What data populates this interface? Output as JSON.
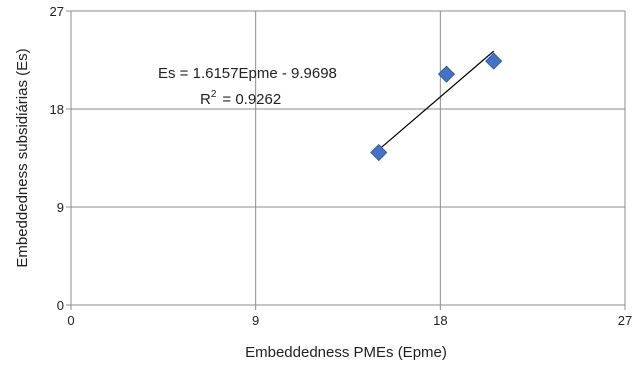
{
  "chart_data": {
    "type": "scatter",
    "title": "",
    "xlabel": "Embeddedness PMEs (Epme)",
    "ylabel": "Embeddedness subsidiárias (Es)",
    "xlim": [
      0,
      27
    ],
    "ylim": [
      0,
      27
    ],
    "xticks": [
      0,
      9,
      18,
      27
    ],
    "yticks": [
      0,
      9,
      18,
      27
    ],
    "grid": true,
    "legend": "none",
    "series": [
      {
        "marker": "diamond",
        "color": "#4472C4",
        "points": [
          {
            "x": 15.0,
            "y": 14.0
          },
          {
            "x": 18.3,
            "y": 21.2
          },
          {
            "x": 20.6,
            "y": 22.4
          }
        ]
      }
    ],
    "trendline": {
      "type": "linear",
      "slope": 1.6157,
      "intercept": -9.9698,
      "x_from": 15.0,
      "x_to": 20.6,
      "color": "#000000"
    },
    "annotations": {
      "equation": "Es = 1.6157Epme - 9.9698",
      "r2_prefix": "R",
      "r2_sup": "2",
      "r2_value": "= 0.9262"
    }
  }
}
